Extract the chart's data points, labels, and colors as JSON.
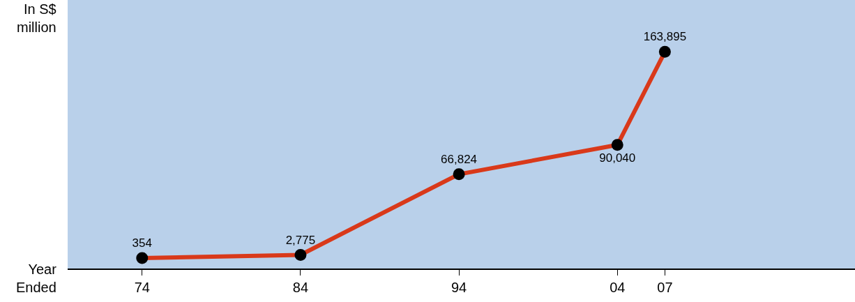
{
  "chart_data": {
    "type": "line",
    "ylabel": "In S$\nmillion",
    "xlabel": "Year\nEnded",
    "x": [
      1974,
      1984,
      1994,
      2004,
      2007
    ],
    "series": [
      {
        "color": "#d9391a",
        "values": [
          354,
          2775,
          66824,
          90040,
          163895
        ],
        "value_labels": [
          "354",
          "2,775",
          "66,824",
          "90,040",
          "163,895"
        ]
      }
    ],
    "xlim": [
      1969.3,
      2019
    ],
    "xticks": [
      {
        "value": 1974,
        "label": "74"
      },
      {
        "value": 1984,
        "label": "84"
      },
      {
        "value": 1994,
        "label": "94"
      },
      {
        "value": 2004,
        "label": "04"
      },
      {
        "value": 2007,
        "label": "07"
      }
    ],
    "ylim": [
      -8000,
      205000
    ],
    "tick_labels": "x",
    "grid": false,
    "legend": false,
    "marker": "circle",
    "line_style": "solid"
  }
}
